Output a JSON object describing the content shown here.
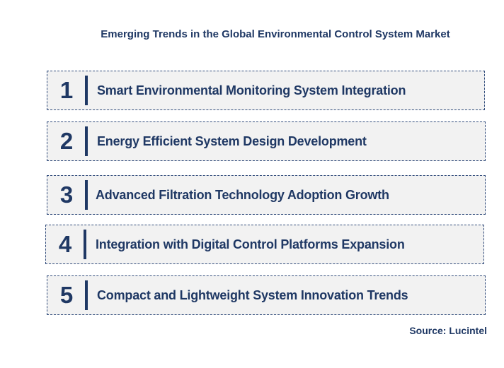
{
  "title": "Emerging Trends in the Global Environmental Control System Market",
  "trends": [
    {
      "number": "1",
      "text": "Smart Environmental Monitoring System Integration"
    },
    {
      "number": "2",
      "text": "Energy Efficient System Design Development"
    },
    {
      "number": "3",
      "text": "Advanced Filtration Technology Adoption Growth"
    },
    {
      "number": "4",
      "text": "Integration with Digital Control Platforms Expansion"
    },
    {
      "number": "5",
      "text": "Compact and Lightweight System Innovation Trends"
    }
  ],
  "source": "Source: Lucintel",
  "colors": {
    "text": "#1f3864",
    "box_background": "#f2f2f2",
    "box_border": "#2f4a7a"
  }
}
